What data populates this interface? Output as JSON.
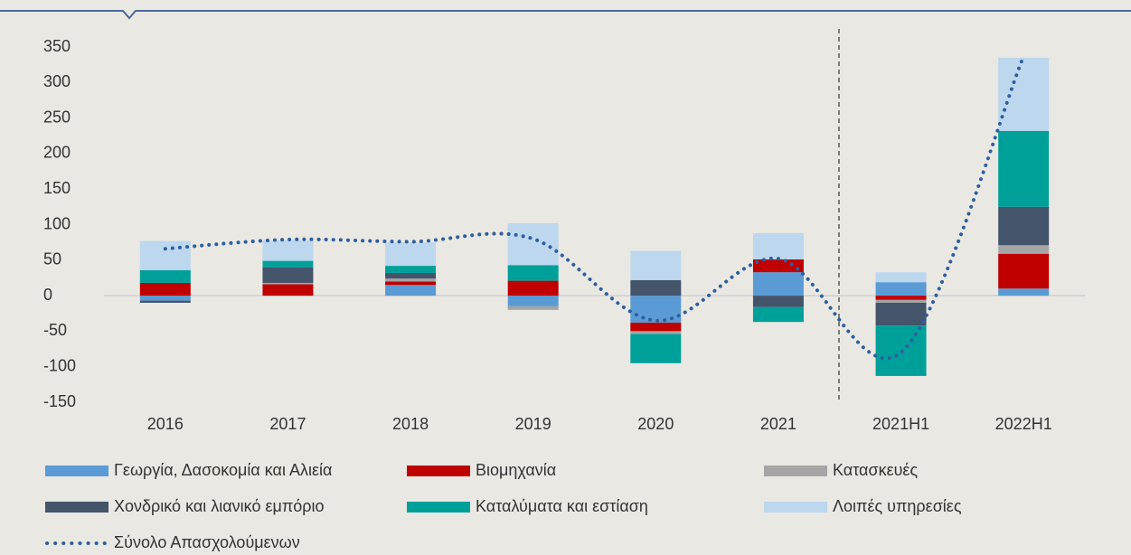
{
  "chart_data": {
    "type": "bar",
    "stacked": true,
    "categories": [
      "2016",
      "2017",
      "2018",
      "2019",
      "2020",
      "2021",
      "2021H1",
      "2022H1"
    ],
    "series": [
      {
        "name": "Γεωργία, Δασοκομία και Αλιεία",
        "color": "#5b9bd5",
        "values": [
          -7,
          0,
          15,
          -15,
          -38,
          33,
          19,
          10
        ]
      },
      {
        "name": "Βιομηχανία",
        "color": "#c00000",
        "values": [
          18,
          16,
          5,
          21,
          -12,
          18,
          -6,
          49
        ]
      },
      {
        "name": "Κατασκευές",
        "color": "#a5a5a5",
        "values": [
          0,
          2,
          4,
          -5,
          -4,
          0,
          -4,
          12
        ]
      },
      {
        "name": "Χονδρικό και λιανικό εμπόριο",
        "color": "#44546a",
        "values": [
          -3,
          22,
          8,
          0,
          22,
          -16,
          -32,
          54
        ]
      },
      {
        "name": "Καταλύματα και εστίαση",
        "color": "#00a09a",
        "values": [
          18,
          9,
          10,
          22,
          -41,
          -21,
          -71,
          107
        ]
      },
      {
        "name": "Λοιπές υπηρεσίες",
        "color": "#bdd7ee",
        "values": [
          41,
          29,
          33,
          59,
          41,
          37,
          14,
          103
        ]
      },
      {
        "name": "Σύνολο Απασχολούμενων",
        "color": "#2e5f9e",
        "type": "line",
        "values": [
          66,
          79,
          76,
          80,
          -35,
          52,
          -80,
          337
        ]
      }
    ],
    "ylim": [
      -150,
      350
    ],
    "yticks": [
      -150,
      -100,
      -50,
      0,
      50,
      100,
      150,
      200,
      250,
      300,
      350
    ],
    "grid": false
  }
}
